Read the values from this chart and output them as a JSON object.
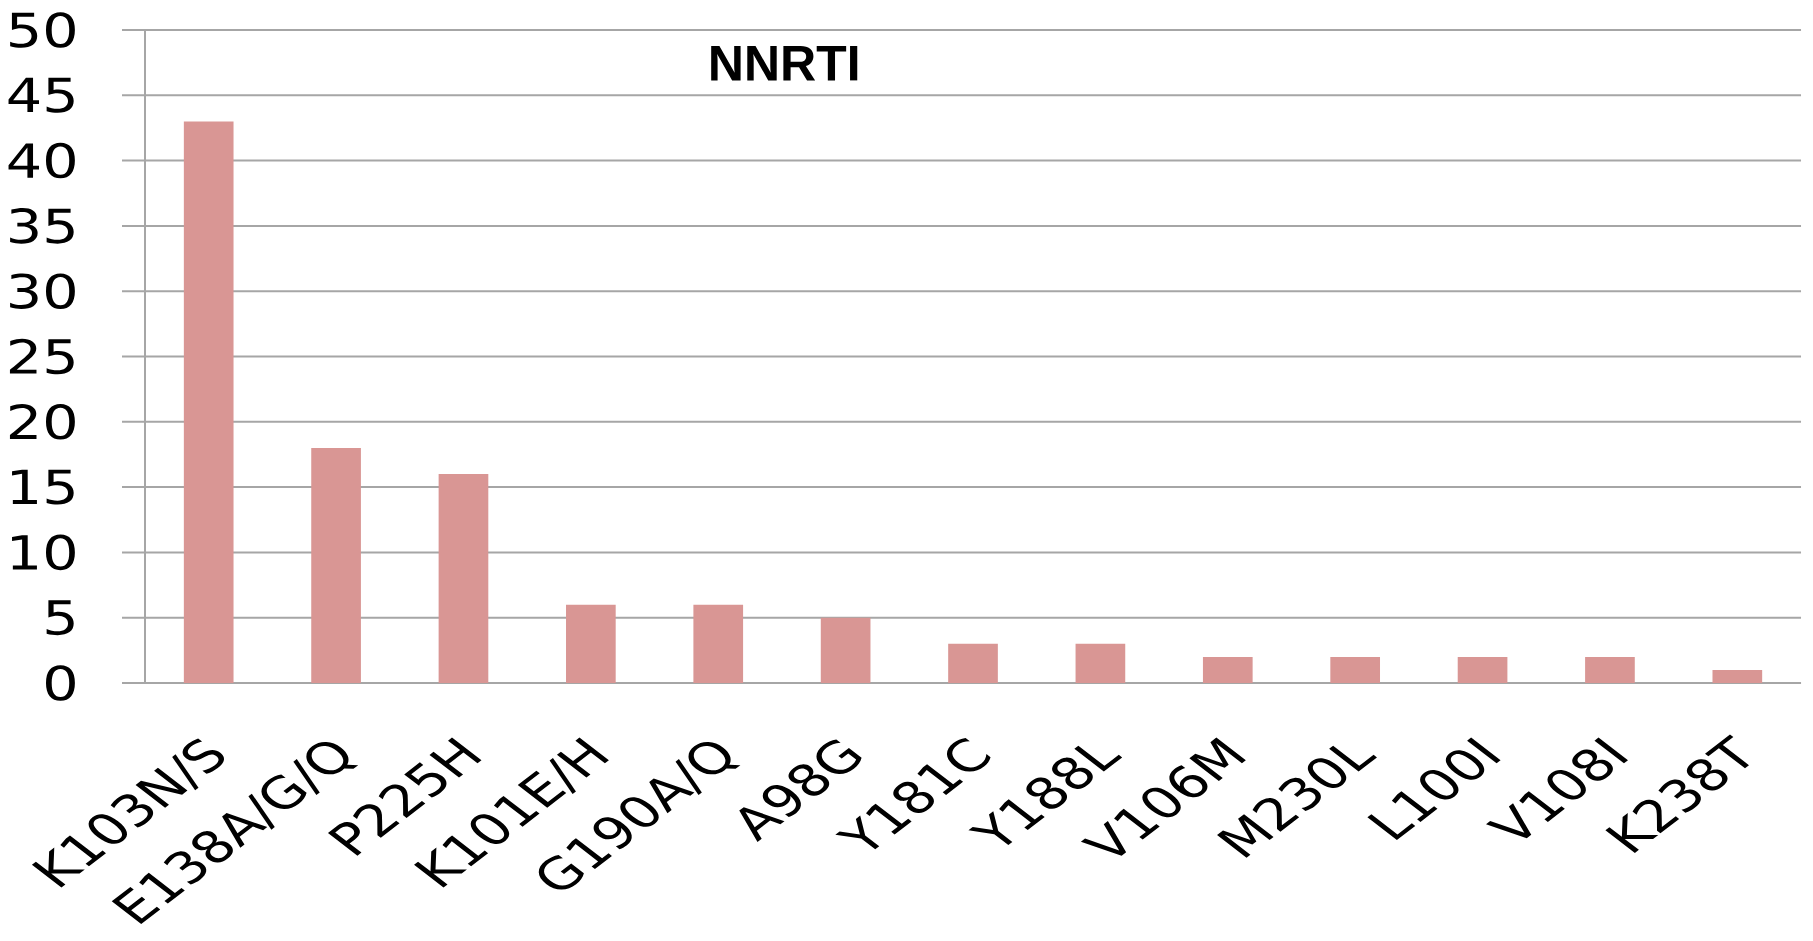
{
  "chart_data": {
    "type": "bar",
    "title": "NNRTI",
    "categories": [
      "K103N/S",
      "E138A/G/Q",
      "P225H",
      "K101E/H",
      "G190A/Q",
      "A98G",
      "Y181C",
      "Y188L",
      "V106M",
      "M230L",
      "L100I",
      "V108I",
      "K238T"
    ],
    "values": [
      43,
      18,
      16,
      6,
      6,
      5,
      3,
      3,
      2,
      2,
      2,
      2,
      1
    ],
    "color": "#d99694",
    "ylim": [
      0,
      50
    ],
    "yticks": [
      0,
      5,
      10,
      15,
      20,
      25,
      30,
      35,
      40,
      45,
      50
    ],
    "grid": "y"
  }
}
